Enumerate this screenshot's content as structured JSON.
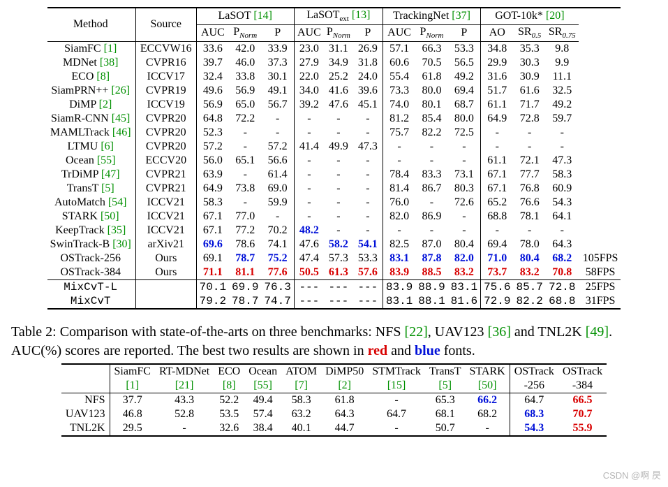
{
  "t1": {
    "header": {
      "method": "Method",
      "source": "Source",
      "groups": [
        {
          "label": "LaSOT",
          "ref": "[14]",
          "cols": [
            "AUC",
            "P_Norm",
            "P"
          ]
        },
        {
          "label": "LaSOT_ext",
          "ref": "[13]",
          "cols": [
            "AUC",
            "P_Norm",
            "P"
          ]
        },
        {
          "label": "TrackingNet",
          "ref": "[37]",
          "cols": [
            "AUC",
            "P_Norm",
            "P"
          ]
        },
        {
          "label": "GOT-10k*",
          "ref": "[20]",
          "cols": [
            "AO",
            "SR_0.5",
            "SR_0.75"
          ]
        }
      ]
    },
    "rows": [
      {
        "m": "SiamFC",
        "r": "[1]",
        "s": "ECCVW16",
        "v": [
          "33.6",
          "42.0",
          "33.9",
          "23.0",
          "31.1",
          "26.9",
          "57.1",
          "66.3",
          "53.3",
          "34.8",
          "35.3",
          "9.8"
        ]
      },
      {
        "m": "MDNet",
        "r": "[38]",
        "s": "CVPR16",
        "v": [
          "39.7",
          "46.0",
          "37.3",
          "27.9",
          "34.9",
          "31.8",
          "60.6",
          "70.5",
          "56.5",
          "29.9",
          "30.3",
          "9.9"
        ]
      },
      {
        "m": "ECO",
        "r": "[8]",
        "s": "ICCV17",
        "v": [
          "32.4",
          "33.8",
          "30.1",
          "22.0",
          "25.2",
          "24.0",
          "55.4",
          "61.8",
          "49.2",
          "31.6",
          "30.9",
          "11.1"
        ]
      },
      {
        "m": "SiamPRN++",
        "r": "[26]",
        "s": "CVPR19",
        "v": [
          "49.6",
          "56.9",
          "49.1",
          "34.0",
          "41.6",
          "39.6",
          "73.3",
          "80.0",
          "69.4",
          "51.7",
          "61.6",
          "32.5"
        ]
      },
      {
        "m": "DiMP",
        "r": "[2]",
        "s": "ICCV19",
        "v": [
          "56.9",
          "65.0",
          "56.7",
          "39.2",
          "47.6",
          "45.1",
          "74.0",
          "80.1",
          "68.7",
          "61.1",
          "71.7",
          "49.2"
        ]
      },
      {
        "m": "SiamR-CNN",
        "r": "[45]",
        "s": "CVPR20",
        "v": [
          "64.8",
          "72.2",
          "-",
          "-",
          "-",
          "-",
          "81.2",
          "85.4",
          "80.0",
          "64.9",
          "72.8",
          "59.7"
        ]
      },
      {
        "m": "MAMLTrack",
        "r": "[46]",
        "s": "CVPR20",
        "v": [
          "52.3",
          "-",
          "-",
          "-",
          "-",
          "-",
          "75.7",
          "82.2",
          "72.5",
          "-",
          "-",
          "-"
        ]
      },
      {
        "m": "LTMU",
        "r": "[6]",
        "s": "CVPR20",
        "v": [
          "57.2",
          "-",
          "57.2",
          "41.4",
          "49.9",
          "47.3",
          "-",
          "-",
          "-",
          "-",
          "-",
          "-"
        ]
      },
      {
        "m": "Ocean",
        "r": "[55]",
        "s": "ECCV20",
        "v": [
          "56.0",
          "65.1",
          "56.6",
          "-",
          "-",
          "-",
          "-",
          "-",
          "-",
          "61.1",
          "72.1",
          "47.3"
        ]
      },
      {
        "m": "TrDiMP",
        "r": "[47]",
        "s": "CVPR21",
        "v": [
          "63.9",
          "-",
          "61.4",
          "-",
          "-",
          "-",
          "78.4",
          "83.3",
          "73.1",
          "67.1",
          "77.7",
          "58.3"
        ]
      },
      {
        "m": "TransT",
        "r": "[5]",
        "s": "CVPR21",
        "v": [
          "64.9",
          "73.8",
          "69.0",
          "-",
          "-",
          "-",
          "81.4",
          "86.7",
          "80.3",
          "67.1",
          "76.8",
          "60.9"
        ]
      },
      {
        "m": "AutoMatch",
        "r": "[54]",
        "s": "ICCV21",
        "v": [
          "58.3",
          "-",
          "59.9",
          "-",
          "-",
          "-",
          "76.0",
          "-",
          "72.6",
          "65.2",
          "76.6",
          "54.3"
        ]
      },
      {
        "m": "STARK",
        "r": "[50]",
        "s": "ICCV21",
        "v": [
          "67.1",
          "77.0",
          "-",
          "-",
          "-",
          "-",
          "82.0",
          "86.9",
          "-",
          "68.8",
          "78.1",
          "64.1"
        ]
      },
      {
        "m": "KeepTrack",
        "r": "[35]",
        "s": "ICCV21",
        "v": [
          "67.1",
          "77.2",
          "70.2",
          "48.2|b",
          "-",
          "-",
          "-",
          "-",
          "-",
          "-",
          "-",
          "-"
        ]
      },
      {
        "m": "SwinTrack-B",
        "r": "[30]",
        "s": "arXiv21",
        "v": [
          "69.6|b",
          "78.6",
          "74.1",
          "47.6",
          "58.2|b",
          "54.1|b",
          "82.5",
          "87.0",
          "80.4",
          "69.4",
          "78.0",
          "64.3"
        ]
      },
      {
        "m": "OSTrack-256",
        "r": "",
        "s": "Ours",
        "v": [
          "69.1",
          "78.7|b",
          "75.2|b",
          "47.4",
          "57.3",
          "53.3",
          "83.1|b",
          "87.8|b",
          "82.0|b",
          "71.0|b",
          "80.4|b",
          "68.2|b"
        ],
        "fps": "105FPS"
      },
      {
        "m": "OSTrack-384",
        "r": "",
        "s": "Ours",
        "v": [
          "71.1|r",
          "81.1|r",
          "77.6|r",
          "50.5|r",
          "61.3|r",
          "57.6|r",
          "83.9|r",
          "88.5|r",
          "83.2|r",
          "73.7|r",
          "83.2|r",
          "70.8|r"
        ],
        "fps": "58FPS"
      }
    ],
    "mono_rows": [
      {
        "m": "MixCvT-L",
        "v": [
          "70.1",
          "69.9",
          "76.3",
          "---",
          "---",
          "---",
          "83.9",
          "88.9",
          "83.1",
          "75.6",
          "85.7",
          "72.8"
        ],
        "fps": "25FPS"
      },
      {
        "m": "MixCvT",
        "v": [
          "79.2",
          "78.7",
          "74.7",
          "---",
          "---",
          "---",
          "83.1",
          "88.1",
          "81.6",
          "72.9",
          "82.2",
          "68.8"
        ],
        "fps": "31FPS"
      }
    ]
  },
  "caption": {
    "pre": "Table 2: Comparison with state-of-the-arts on three benchmarks: NFS ",
    "r1": "[22]",
    "mid1": ", UAV123 ",
    "r2": "[36]",
    "mid2": " and TNL2K ",
    "r3": "[49]",
    "post": ". AUC(%) scores are reported. The best two results are shown in ",
    "red": "red",
    "and": " and ",
    "blue": "blue",
    "tail": " fonts."
  },
  "t2": {
    "cols": [
      {
        "n": "SiamFC",
        "r": "[1]"
      },
      {
        "n": "RT-MDNet",
        "r": "[21]"
      },
      {
        "n": "ECO",
        "r": "[8]"
      },
      {
        "n": "Ocean",
        "r": "[55]"
      },
      {
        "n": "ATOM",
        "r": "[7]"
      },
      {
        "n": "DiMP50",
        "r": "[2]"
      },
      {
        "n": "STMTrack",
        "r": "[15]"
      },
      {
        "n": "TransT",
        "r": "[5]"
      },
      {
        "n": "STARK",
        "r": "[50]"
      },
      {
        "n": "OSTrack",
        "sub": "-256"
      },
      {
        "n": "OSTrack",
        "sub": "-384"
      }
    ],
    "rows": [
      {
        "l": "NFS",
        "v": [
          "37.7",
          "43.3",
          "52.2",
          "49.4",
          "58.3",
          "61.8",
          "-",
          "65.3",
          "66.2|b",
          "64.7",
          "66.5|r"
        ]
      },
      {
        "l": "UAV123",
        "v": [
          "46.8",
          "52.8",
          "53.5",
          "57.4",
          "63.2",
          "64.3",
          "64.7",
          "68.1",
          "68.2",
          "68.3|b",
          "70.7|r"
        ]
      },
      {
        "l": "TNL2K",
        "v": [
          "29.5",
          "-",
          "32.6",
          "38.4",
          "40.1",
          "44.7",
          "-",
          "50.7",
          "-",
          "54.3|b",
          "55.9|r"
        ]
      }
    ]
  },
  "watermark": "CSDN @啊 昃"
}
